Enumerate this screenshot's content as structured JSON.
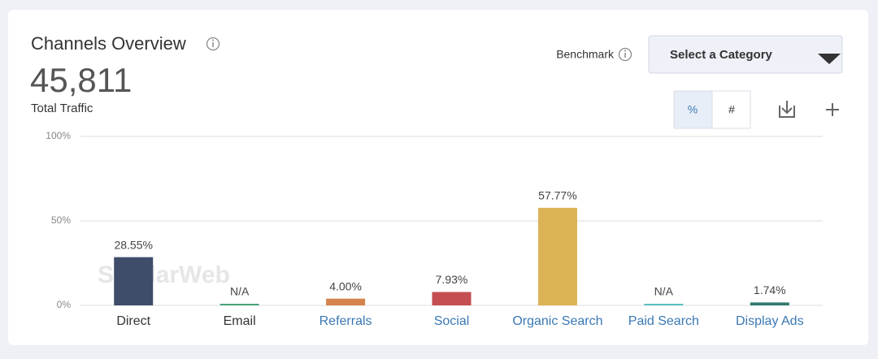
{
  "widget": {
    "title": "Channels Overview",
    "total": "45,811",
    "total_label": "Total Traffic",
    "benchmark": "Benchmark",
    "dropdown": "Select a Category",
    "toggle_percent": "%",
    "toggle_number": "#"
  },
  "chart_data": {
    "type": "bar",
    "watermark": "SimilarWeb",
    "categories": [
      "Direct",
      "Email",
      "Referrals",
      "Social",
      "Organic Search",
      "Paid Search",
      "Display Ads"
    ],
    "category_colors": [
      "#333333",
      "#333333",
      "#3a78b4",
      "#3a78b4",
      "#3a78b4",
      "#3a78b4",
      "#3a78b4"
    ],
    "values": [
      28.55,
      null,
      4.0,
      7.93,
      57.77,
      null,
      1.74
    ],
    "value_labels": [
      "28.55%",
      "N/A",
      "4.00%",
      "7.93%",
      "57.77%",
      "N/A",
      "1.74%"
    ],
    "colors": [
      "#3f4d6b",
      "#4aa37b",
      "#d3834b",
      "#c44e52",
      "#dcb257",
      "#5bbfc0",
      "#2f7a6b"
    ],
    "ylim": [
      0,
      100
    ],
    "yticks": [
      {
        "value": 0,
        "label": "0%"
      },
      {
        "value": 50,
        "label": "50%"
      },
      {
        "value": 100,
        "label": "100%"
      }
    ],
    "grid": true
  }
}
